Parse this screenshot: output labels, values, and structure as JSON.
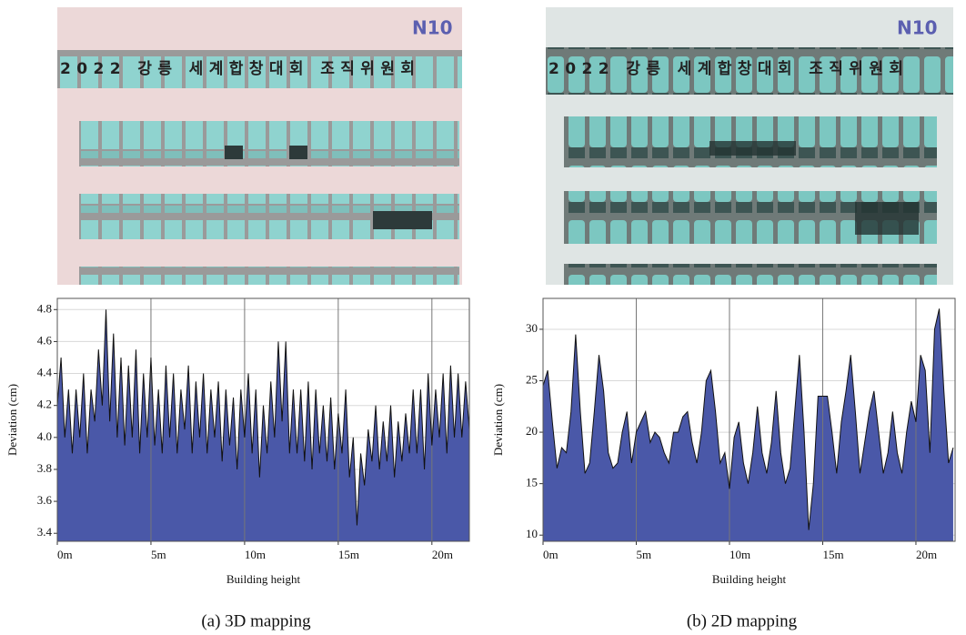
{
  "chart_data": [
    {
      "type": "area",
      "caption": "(a) 3D mapping",
      "xlabel": "Building height",
      "ylabel": "Deviation (cm)",
      "photo": {
        "sign": "N10",
        "banner": "2022 강릉 세계합창대회 조직위원회"
      },
      "color": "#4a58a8",
      "grid": true,
      "xlim": [
        0,
        22
      ],
      "ylim": [
        3.35,
        4.87
      ],
      "xticks": [
        {
          "value": 0,
          "label": "0m"
        },
        {
          "value": 5,
          "label": "5m"
        },
        {
          "value": 10,
          "label": "10m"
        },
        {
          "value": 15,
          "label": "15m"
        },
        {
          "value": 20,
          "label": "20m"
        }
      ],
      "yticks": [
        3.4,
        3.6,
        3.8,
        {
          "value": 4,
          "label": "4.0"
        },
        4.2,
        4.4,
        4.6,
        4.8
      ],
      "x": [
        0,
        0.2,
        0.4,
        0.6,
        0.8,
        1,
        1.2,
        1.4,
        1.6,
        1.8,
        2,
        2.2,
        2.4,
        2.6,
        2.8,
        3,
        3.2,
        3.4,
        3.6,
        3.8,
        4,
        4.2,
        4.4,
        4.6,
        4.8,
        5,
        5.2,
        5.4,
        5.6,
        5.8,
        6,
        6.2,
        6.4,
        6.6,
        6.8,
        7,
        7.2,
        7.4,
        7.6,
        7.8,
        8,
        8.2,
        8.4,
        8.6,
        8.8,
        9,
        9.2,
        9.4,
        9.6,
        9.8,
        10,
        10.2,
        10.4,
        10.6,
        10.8,
        11,
        11.2,
        11.4,
        11.6,
        11.8,
        12,
        12.2,
        12.4,
        12.6,
        12.8,
        13,
        13.2,
        13.4,
        13.6,
        13.8,
        14,
        14.2,
        14.4,
        14.6,
        14.8,
        15,
        15.2,
        15.4,
        15.6,
        15.8,
        16,
        16.2,
        16.4,
        16.6,
        16.8,
        17,
        17.2,
        17.4,
        17.6,
        17.8,
        18,
        18.2,
        18.4,
        18.6,
        18.8,
        19,
        19.2,
        19.4,
        19.6,
        19.8,
        20,
        20.2,
        20.4,
        20.6,
        20.8,
        21,
        21.2,
        21.4,
        21.6,
        21.8,
        22
      ],
      "values": [
        4.2,
        4.5,
        4.0,
        4.3,
        3.9,
        4.3,
        4.0,
        4.4,
        3.9,
        4.3,
        4.1,
        4.55,
        4.2,
        4.8,
        4.1,
        4.65,
        4.0,
        4.5,
        3.95,
        4.45,
        4.0,
        4.55,
        3.9,
        4.4,
        4.0,
        4.5,
        3.95,
        4.3,
        3.9,
        4.45,
        4.0,
        4.4,
        3.9,
        4.3,
        4.05,
        4.45,
        3.9,
        4.35,
        4.0,
        4.4,
        3.9,
        4.3,
        4.0,
        4.35,
        3.85,
        4.3,
        3.95,
        4.25,
        3.8,
        4.3,
        4.0,
        4.4,
        3.9,
        4.3,
        3.75,
        4.2,
        3.9,
        4.35,
        4.0,
        4.6,
        4.1,
        4.6,
        3.9,
        4.3,
        3.9,
        4.3,
        3.85,
        4.35,
        3.8,
        4.3,
        3.9,
        4.2,
        3.85,
        4.25,
        3.8,
        4.15,
        3.9,
        4.3,
        3.75,
        4.0,
        3.45,
        3.9,
        3.7,
        4.05,
        3.85,
        4.2,
        3.8,
        4.1,
        3.85,
        4.2,
        3.75,
        4.1,
        3.85,
        4.15,
        3.9,
        4.3,
        3.9,
        4.3,
        3.8,
        4.4,
        3.95,
        4.3,
        4.0,
        4.4,
        3.9,
        4.45,
        4.0,
        4.4,
        4.0,
        4.35,
        4.05
      ]
    },
    {
      "type": "area",
      "caption": "(b) 2D mapping",
      "xlabel": "Building height",
      "ylabel": "Deviation (cm)",
      "photo": {
        "sign": "N10",
        "banner": "2022 강릉 세계합창대회 조직위원회"
      },
      "color": "#4a58a8",
      "grid": true,
      "xlim": [
        0,
        22.1
      ],
      "ylim": [
        9.4,
        33
      ],
      "xticks": [
        {
          "value": 0,
          "label": "0m"
        },
        {
          "value": 5,
          "label": "5m"
        },
        {
          "value": 10,
          "label": "10m"
        },
        {
          "value": 15,
          "label": "15m"
        },
        {
          "value": 20,
          "label": "20m"
        }
      ],
      "yticks": [
        10,
        15,
        20,
        25,
        30
      ],
      "x": [
        0,
        0.25,
        0.5,
        0.75,
        1,
        1.25,
        1.5,
        1.75,
        2,
        2.25,
        2.5,
        2.75,
        3,
        3.25,
        3.5,
        3.75,
        4,
        4.25,
        4.5,
        4.75,
        5,
        5.25,
        5.5,
        5.75,
        6,
        6.25,
        6.5,
        6.75,
        7,
        7.25,
        7.5,
        7.75,
        8,
        8.25,
        8.5,
        8.75,
        9,
        9.25,
        9.5,
        9.75,
        10,
        10.25,
        10.5,
        10.75,
        11,
        11.25,
        11.5,
        11.75,
        12,
        12.25,
        12.5,
        12.75,
        13,
        13.25,
        13.5,
        13.75,
        14,
        14.25,
        14.5,
        14.75,
        15,
        15.25,
        15.5,
        15.75,
        16,
        16.25,
        16.5,
        16.75,
        17,
        17.25,
        17.5,
        17.75,
        18,
        18.25,
        18.5,
        18.75,
        19,
        19.25,
        19.5,
        19.75,
        20,
        20.25,
        20.5,
        20.75,
        21,
        21.25,
        21.5,
        21.75,
        22
      ],
      "values": [
        24.5,
        26,
        21,
        16.5,
        18.5,
        18,
        22,
        29.5,
        22,
        16,
        17,
        22,
        27.5,
        24,
        18,
        16.5,
        17,
        20,
        22,
        17,
        20,
        21,
        22,
        19,
        20,
        19.5,
        18,
        17,
        20,
        20,
        21.5,
        22,
        19,
        17,
        20,
        25,
        26,
        22,
        17,
        18,
        14.5,
        19.5,
        21,
        17,
        15,
        18,
        22.5,
        18,
        16,
        19,
        24,
        18,
        15,
        16.5,
        22,
        27.5,
        20,
        10.5,
        15,
        23.5,
        23.5,
        23.5,
        20,
        16,
        21,
        24,
        27.5,
        22,
        16,
        19,
        22,
        24,
        20,
        16,
        18,
        22,
        18,
        16,
        20,
        23,
        21,
        27.5,
        26,
        18,
        30,
        32,
        24,
        17,
        18.5
      ]
    }
  ]
}
